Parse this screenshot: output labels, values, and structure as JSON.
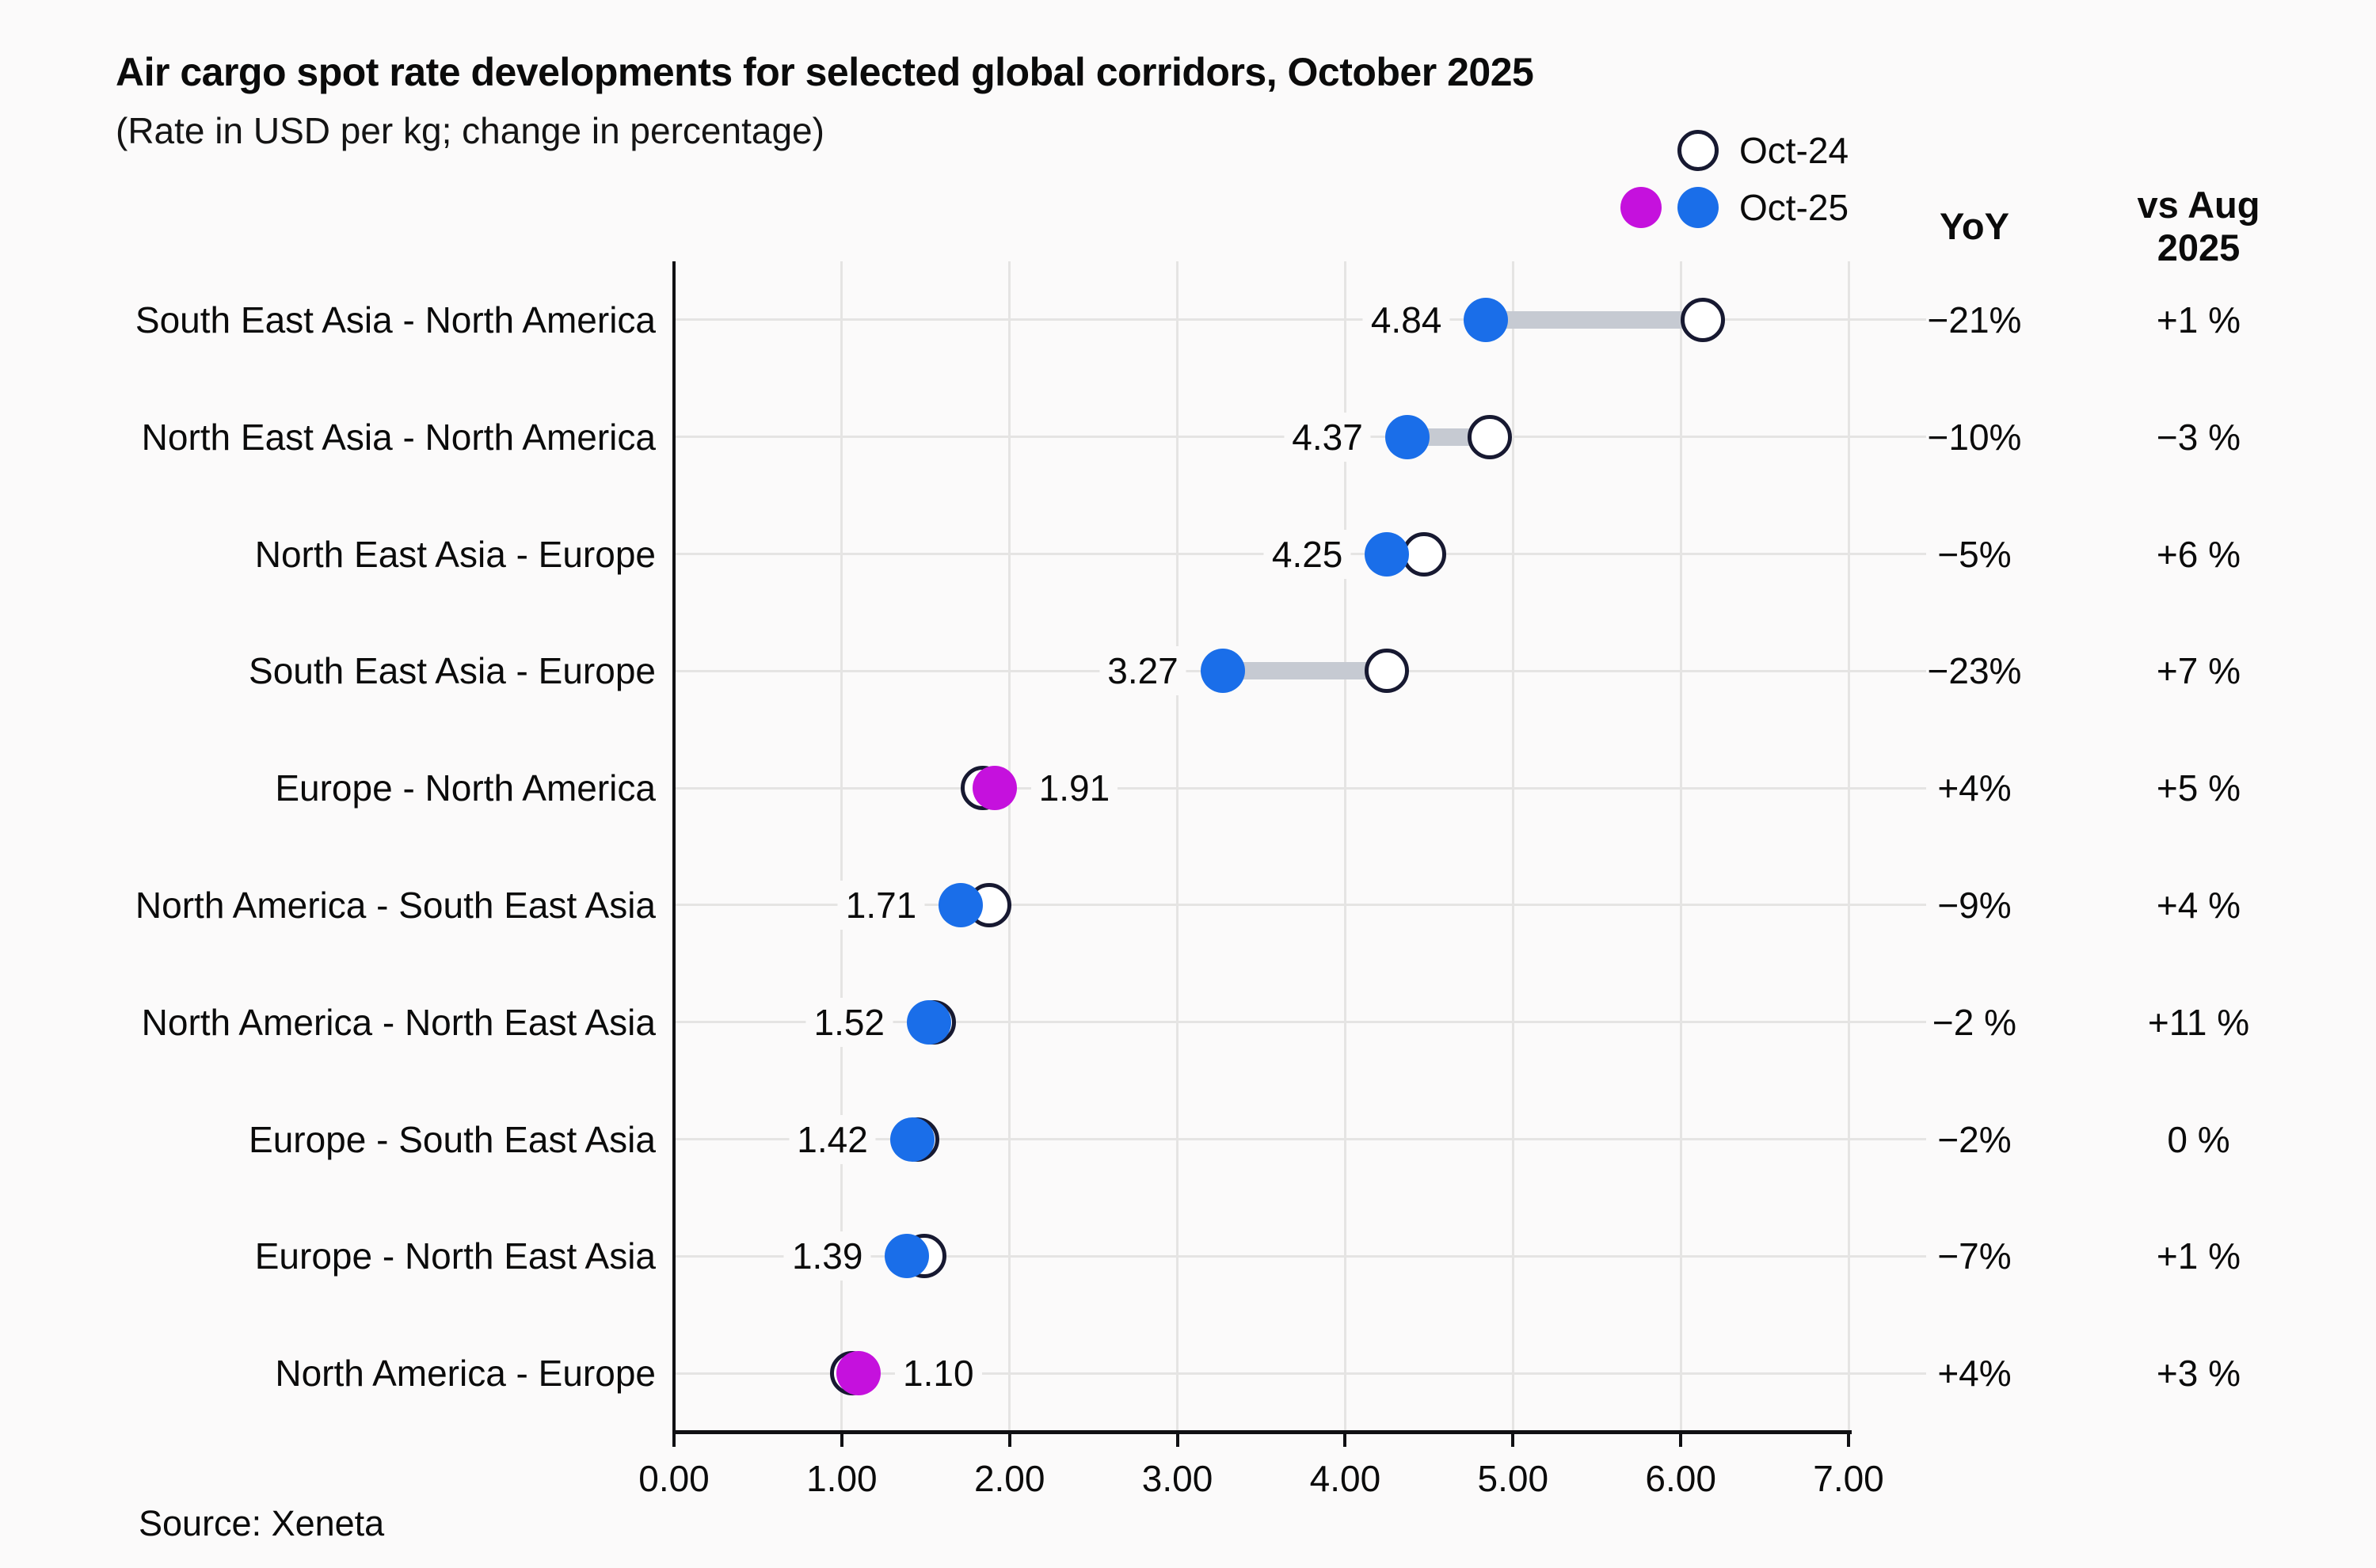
{
  "header": {
    "title": "Air cargo spot rate developments for selected global corridors, October 2025",
    "subtitle": "(Rate in USD per kg; change in percentage)"
  },
  "legend": {
    "oct24_label": "Oct-24",
    "oct25_label": "Oct-25"
  },
  "columns": {
    "yoy_label": "YoY",
    "vs_aug_line1": "vs Aug",
    "vs_aug_line2": "2025"
  },
  "source": "Source: Xeneta",
  "colors": {
    "oct25_decrease": "#1a6ee9",
    "oct25_increase": "#c511dd",
    "oct24_fill": "#ffffff",
    "oct24_stroke": "#171931",
    "connector": "#c6cad2",
    "gridline": "#e5e4e3",
    "background": "#fbfafa",
    "text": "#0b0b0b"
  },
  "chart_data": {
    "type": "dumbbell",
    "title": "Air cargo spot rate developments for selected global corridors, October 2025",
    "subtitle": "(Rate in USD per kg; change in percentage)",
    "xlabel": "Rate in USD per kg",
    "xlim": [
      0,
      7
    ],
    "grid": true,
    "legend_position": "top-right",
    "series_names": [
      "Oct-24",
      "Oct-25"
    ],
    "x_ticks": [
      {
        "value": 0,
        "label": "0.00"
      },
      {
        "value": 1,
        "label": "1.00"
      },
      {
        "value": 2,
        "label": "2.00"
      },
      {
        "value": 3,
        "label": "3.00"
      },
      {
        "value": 4,
        "label": "4.00"
      },
      {
        "value": 5,
        "label": "5.00"
      },
      {
        "value": 6,
        "label": "6.00"
      },
      {
        "value": 7,
        "label": "7.00"
      }
    ],
    "rows": [
      {
        "corridor": "South East Asia - North America",
        "oct25": 4.84,
        "oct25_label": "4.84",
        "oct24": 6.13,
        "yoy": "−21%",
        "vs_aug": "+1 %",
        "direction": "decrease",
        "label_side": "left"
      },
      {
        "corridor": "North East Asia - North America",
        "oct25": 4.37,
        "oct25_label": "4.37",
        "oct24": 4.86,
        "yoy": "−10%",
        "vs_aug": "−3 %",
        "direction": "decrease",
        "label_side": "left"
      },
      {
        "corridor": "North East Asia - Europe",
        "oct25": 4.25,
        "oct25_label": "4.25",
        "oct24": 4.47,
        "yoy": "−5%",
        "vs_aug": "+6 %",
        "direction": "decrease",
        "label_side": "left"
      },
      {
        "corridor": "South East Asia - Europe",
        "oct25": 3.27,
        "oct25_label": "3.27",
        "oct24": 4.25,
        "yoy": "−23%",
        "vs_aug": "+7 %",
        "direction": "decrease",
        "label_side": "left"
      },
      {
        "corridor": "Europe - North America",
        "oct25": 1.91,
        "oct25_label": "1.91",
        "oct24": 1.84,
        "yoy": "+4%",
        "vs_aug": "+5 %",
        "direction": "increase",
        "label_side": "right"
      },
      {
        "corridor": "North America - South East Asia",
        "oct25": 1.71,
        "oct25_label": "1.71",
        "oct24": 1.88,
        "yoy": "−9%",
        "vs_aug": "+4 %",
        "direction": "decrease",
        "label_side": "left"
      },
      {
        "corridor": "North America - North East Asia",
        "oct25": 1.52,
        "oct25_label": "1.52",
        "oct24": 1.55,
        "yoy": "−2 %",
        "vs_aug": "+11 %",
        "direction": "decrease",
        "label_side": "left"
      },
      {
        "corridor": "Europe - South East Asia",
        "oct25": 1.42,
        "oct25_label": "1.42",
        "oct24": 1.45,
        "yoy": "−2%",
        "vs_aug": "0 %",
        "direction": "decrease",
        "label_side": "left"
      },
      {
        "corridor": "Europe - North East Asia",
        "oct25": 1.39,
        "oct25_label": "1.39",
        "oct24": 1.49,
        "yoy": "−7%",
        "vs_aug": "+1 %",
        "direction": "decrease",
        "label_side": "left"
      },
      {
        "corridor": "North America - Europe",
        "oct25": 1.1,
        "oct25_label": "1.10",
        "oct24": 1.06,
        "yoy": "+4%",
        "vs_aug": "+3 %",
        "direction": "increase",
        "label_side": "right"
      }
    ]
  }
}
